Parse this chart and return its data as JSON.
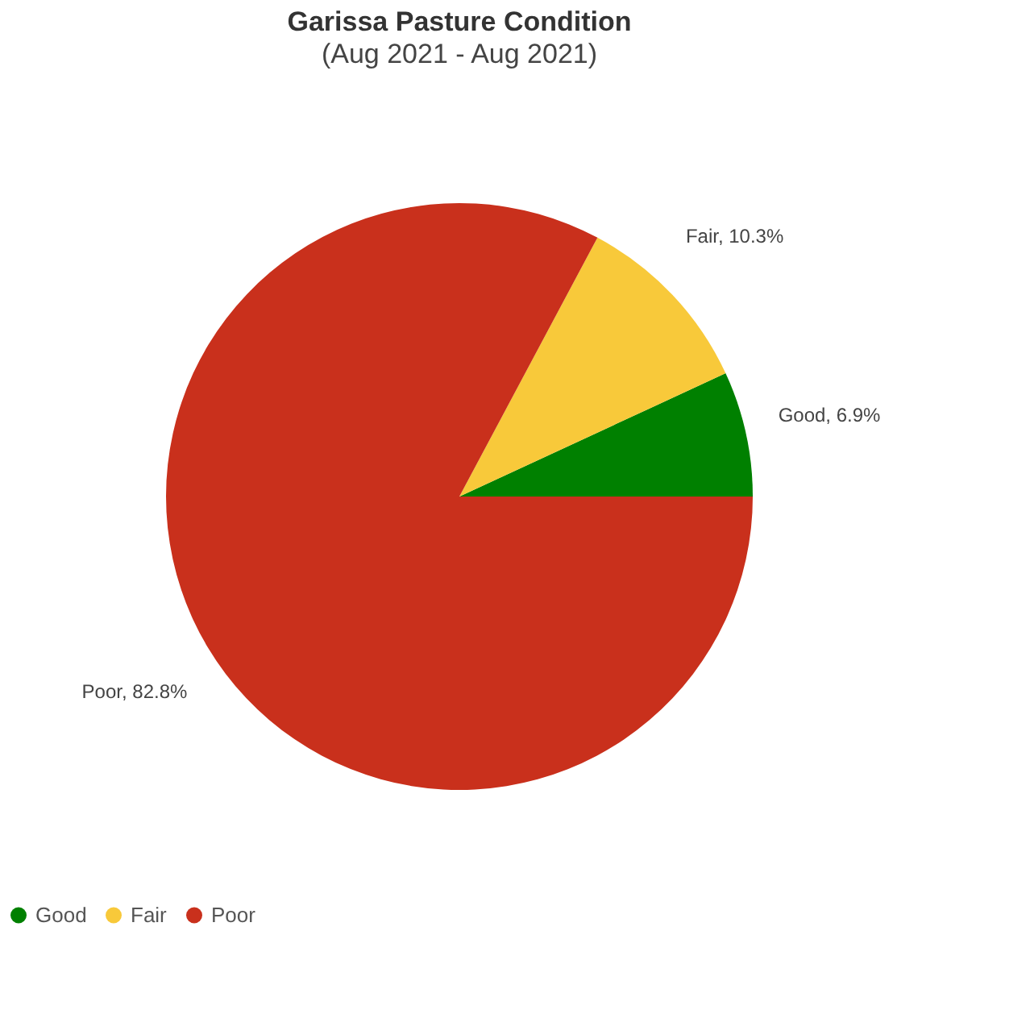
{
  "chart_data": {
    "type": "pie",
    "title": "Garissa Pasture Condition",
    "subtitle": "(Aug 2021 - Aug 2021)",
    "categories": [
      "Good",
      "Fair",
      "Poor"
    ],
    "values": [
      6.9,
      10.3,
      82.8
    ],
    "colors": [
      "#008000",
      "#f8c93a",
      "#c9301c"
    ],
    "value_labels": [
      "Good, 6.9%",
      "Fair, 10.3%",
      "Poor, 82.8%"
    ],
    "legend": "bottom"
  }
}
